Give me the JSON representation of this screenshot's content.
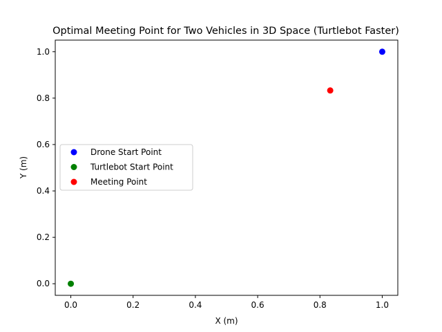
{
  "chart_data": {
    "type": "scatter",
    "title": "Optimal Meeting Point for Two Vehicles in 3D Space (Turtlebot Faster)",
    "xlabel": "X (m)",
    "ylabel": "Y (m)",
    "xlim": [
      -0.05,
      1.05
    ],
    "ylim": [
      -0.05,
      1.05
    ],
    "xticks": [
      0.0,
      0.2,
      0.4,
      0.6,
      0.8,
      1.0
    ],
    "yticks": [
      0.0,
      0.2,
      0.4,
      0.6,
      0.8,
      1.0
    ],
    "xtick_labels": [
      "0.0",
      "0.2",
      "0.4",
      "0.6",
      "0.8",
      "1.0"
    ],
    "ytick_labels": [
      "0.0",
      "0.2",
      "0.4",
      "0.6",
      "0.8",
      "1.0"
    ],
    "grid": false,
    "legend_position": "center-left",
    "series": [
      {
        "name": "Drone Start Point",
        "color": "#0000ff",
        "points": [
          {
            "x": 1.0,
            "y": 1.0
          }
        ]
      },
      {
        "name": "Turtlebot Start Point",
        "color": "#008000",
        "points": [
          {
            "x": 0.0,
            "y": 0.0
          }
        ]
      },
      {
        "name": "Meeting Point",
        "color": "#ff0000",
        "points": [
          {
            "x": 0.833,
            "y": 0.833
          }
        ]
      }
    ]
  }
}
